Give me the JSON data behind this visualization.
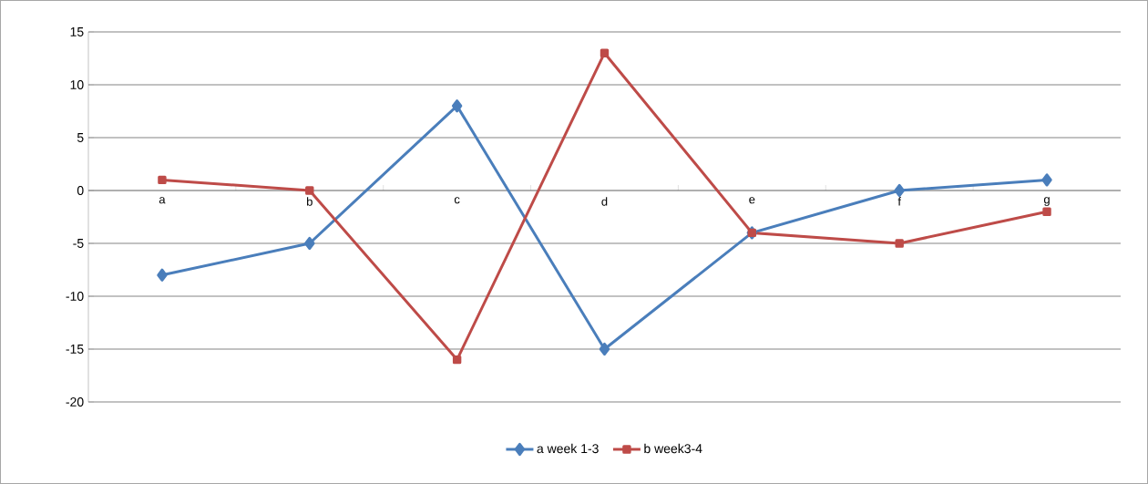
{
  "chart_data": {
    "type": "line",
    "categories": [
      "a",
      "b",
      "c",
      "d",
      "e",
      "f",
      "g"
    ],
    "series": [
      {
        "name": "a week 1-3",
        "color": "#4a7ebb",
        "marker": "diamond",
        "values": [
          -8,
          -5,
          8,
          -15,
          -4,
          0,
          1
        ]
      },
      {
        "name": "b week3-4",
        "color": "#be4b48",
        "marker": "square",
        "values": [
          1,
          0,
          -16,
          13,
          -4,
          -5,
          -2
        ]
      }
    ],
    "ylim": [
      -20,
      15
    ],
    "yticks": [
      -20,
      -15,
      -10,
      -5,
      0,
      5,
      10,
      15
    ],
    "grid": "y",
    "legend": "bottom",
    "line_style": "solid"
  }
}
